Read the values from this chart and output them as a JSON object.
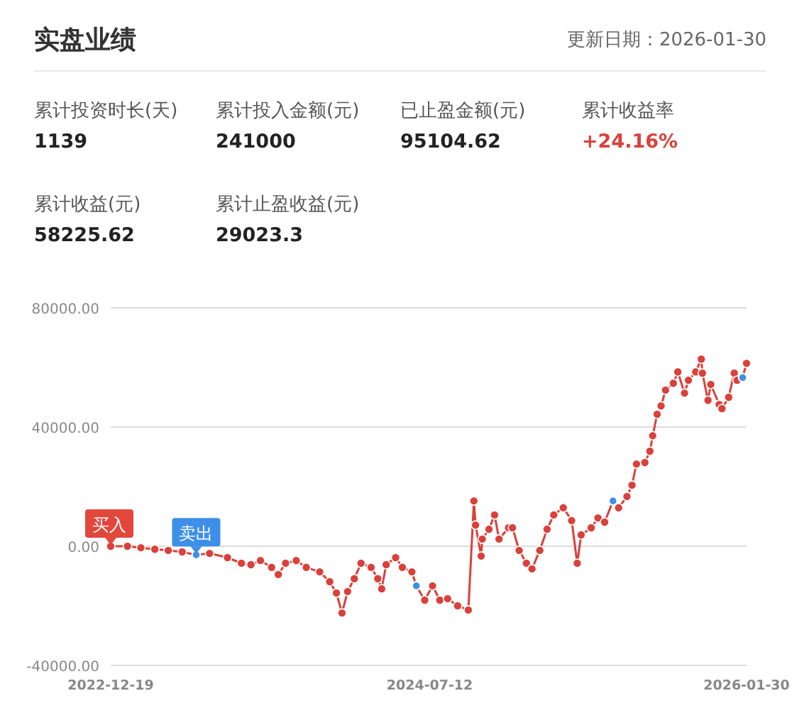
{
  "chart_data": [
    {
      "type": "other",
      "title": "实盘业绩",
      "subtitle": "更新日期：2026-01-30",
      "categories": [
        "累计投资时长(天)",
        "累计投入金额(元)",
        "已止盈金额(元)",
        "累计收益率",
        "累计收益(元)",
        "累计止盈收益(元)"
      ],
      "value_labels": [
        "1139",
        "241000",
        "95104.62",
        "+24.16%",
        "58225.62",
        "29023.3"
      ],
      "colors": [
        "#222222",
        "#222222",
        "#222222",
        "#d9413a",
        "#222222",
        "#222222"
      ]
    },
    {
      "type": "line",
      "marker": "circle",
      "line_style": "solid",
      "grid": "y",
      "xlim": [
        "2022-12-19",
        "2026-01-30"
      ],
      "xticks": [
        {
          "value": "2022-12-19",
          "label": "2022-12-19"
        },
        {
          "value": "2024-07-12",
          "label": "2024-07-12"
        },
        {
          "value": "2026-01-30",
          "label": "2026-01-30"
        }
      ],
      "ylim": [
        -40000,
        80000
      ],
      "yticks": [
        {
          "value": -40000,
          "label": "-40000.00"
        },
        {
          "value": 0,
          "label": "0.00"
        },
        {
          "value": 40000,
          "label": "40000.00"
        },
        {
          "value": 80000,
          "label": "80000.00"
        }
      ],
      "annotations": [
        {
          "text": "买入",
          "x": "2022-12-19",
          "y": 0
        },
        {
          "text": "卖出",
          "x": "2023-05-21",
          "y": -2900
        }
      ],
      "series": [
        {
          "color": "#d9413a",
          "type": "line",
          "x": [
            "2022-12-19",
            "2023-01-18",
            "2023-02-11",
            "2023-03-08",
            "2023-04-01",
            "2023-04-26",
            "2023-05-21",
            "2023-06-14",
            "2023-07-16",
            "2023-08-10",
            "2023-08-27",
            "2023-09-13",
            "2023-10-03",
            "2023-10-15",
            "2023-10-28",
            "2023-11-16",
            "2023-12-04",
            "2023-12-28",
            "2024-01-15",
            "2024-01-27",
            "2024-02-06",
            "2024-02-16",
            "2024-02-28",
            "2024-03-11",
            "2024-03-29",
            "2024-04-10",
            "2024-04-17",
            "2024-04-25",
            "2024-05-12",
            "2024-05-24",
            "2024-06-10",
            "2024-06-18",
            "2024-07-03",
            "2024-07-17",
            "2024-07-30",
            "2024-08-13",
            "2024-08-31",
            "2024-09-19",
            "2024-09-29",
            "2024-10-02",
            "2024-10-12",
            "2024-10-14",
            "2024-10-26",
            "2024-11-05",
            "2024-11-13",
            "2024-11-30",
            "2024-12-07",
            "2024-12-19",
            "2025-01-01",
            "2025-01-11",
            "2025-01-25",
            "2025-02-07",
            "2025-02-19",
            "2025-03-08",
            "2025-03-23",
            "2025-04-02",
            "2025-04-09",
            "2025-04-27",
            "2025-05-09",
            "2025-05-21",
            "2025-06-05",
            "2025-06-15",
            "2025-06-30",
            "2025-07-09",
            "2025-07-17",
            "2025-08-01",
            "2025-08-10",
            "2025-08-15",
            "2025-08-23",
            "2025-08-30",
            "2025-09-07",
            "2025-09-21",
            "2025-09-29",
            "2025-10-11",
            "2025-10-18",
            "2025-10-31",
            "2025-11-10",
            "2025-11-12",
            "2025-11-22",
            "2025-11-27",
            "2025-12-12",
            "2025-12-17",
            "2025-12-29",
            "2026-01-08",
            "2026-01-13",
            "2026-01-23",
            "2026-01-30"
          ],
          "values": [
            0,
            0,
            -500,
            -1000,
            -1400,
            -1900,
            -2900,
            -2400,
            -3800,
            -5700,
            -6200,
            -4800,
            -7100,
            -9500,
            -5700,
            -4800,
            -7100,
            -8600,
            -11900,
            -15700,
            -22400,
            -15200,
            -10900,
            -5700,
            -7100,
            -10900,
            -14300,
            -6200,
            -3800,
            -7100,
            -8600,
            -13300,
            -18100,
            -13300,
            -18100,
            -17600,
            -20000,
            -21400,
            15200,
            7100,
            -3300,
            2400,
            5700,
            10500,
            2400,
            6200,
            6200,
            -1400,
            -5700,
            -7600,
            -1400,
            5700,
            10500,
            12900,
            8600,
            -5700,
            3800,
            6200,
            9500,
            8100,
            15200,
            12900,
            16700,
            20500,
            27600,
            28100,
            31900,
            37100,
            44300,
            47100,
            52400,
            54700,
            58500,
            51400,
            55700,
            58500,
            62800,
            58100,
            49000,
            54300,
            47600,
            46200,
            50000,
            58100,
            55700,
            56600,
            61400
          ]
        },
        {
          "color": "#3d8fe8",
          "type": "scatter",
          "x": [
            "2023-05-21",
            "2024-06-18",
            "2025-06-05",
            "2026-01-23"
          ],
          "values": [
            -2900,
            -13300,
            15200,
            56600
          ]
        }
      ]
    }
  ]
}
